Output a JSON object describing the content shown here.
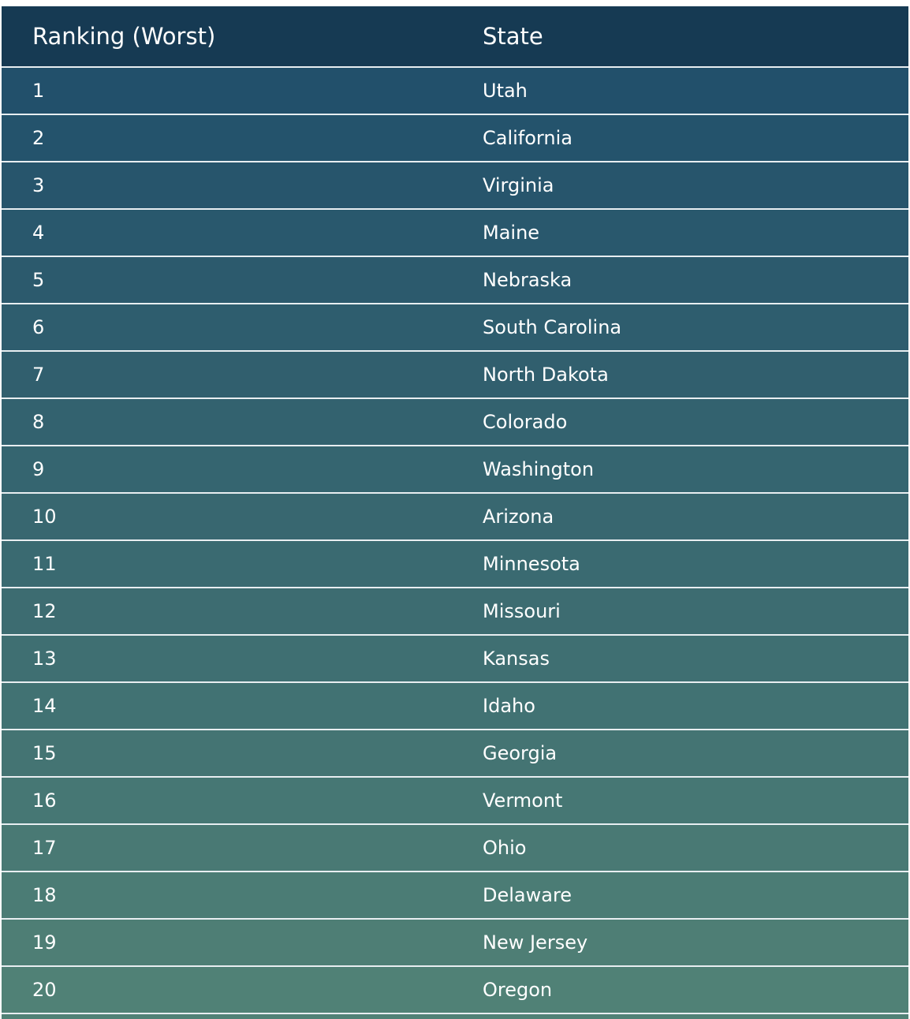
{
  "table": {
    "headers": {
      "rank": "Ranking (Worst)",
      "state": "State"
    },
    "header_color": "#163a53",
    "gradient_start_color": "#22506b",
    "gradient_end_color": "#508176",
    "rows": [
      {
        "rank": "1",
        "state": "Utah"
      },
      {
        "rank": "2",
        "state": "California"
      },
      {
        "rank": "3",
        "state": "Virginia"
      },
      {
        "rank": "4",
        "state": "Maine"
      },
      {
        "rank": "5",
        "state": "Nebraska"
      },
      {
        "rank": "6",
        "state": "South Carolina"
      },
      {
        "rank": "7",
        "state": "North Dakota"
      },
      {
        "rank": "8",
        "state": "Colorado"
      },
      {
        "rank": "9",
        "state": "Washington"
      },
      {
        "rank": "10",
        "state": "Arizona"
      },
      {
        "rank": "11",
        "state": "Minnesota"
      },
      {
        "rank": "12",
        "state": "Missouri"
      },
      {
        "rank": "13",
        "state": "Kansas"
      },
      {
        "rank": "14",
        "state": "Idaho"
      },
      {
        "rank": "15",
        "state": "Georgia"
      },
      {
        "rank": "16",
        "state": "Vermont"
      },
      {
        "rank": "17",
        "state": "Ohio"
      },
      {
        "rank": "18",
        "state": "Delaware"
      },
      {
        "rank": "19",
        "state": "New Jersey"
      },
      {
        "rank": "20",
        "state": "Oregon"
      }
    ]
  }
}
